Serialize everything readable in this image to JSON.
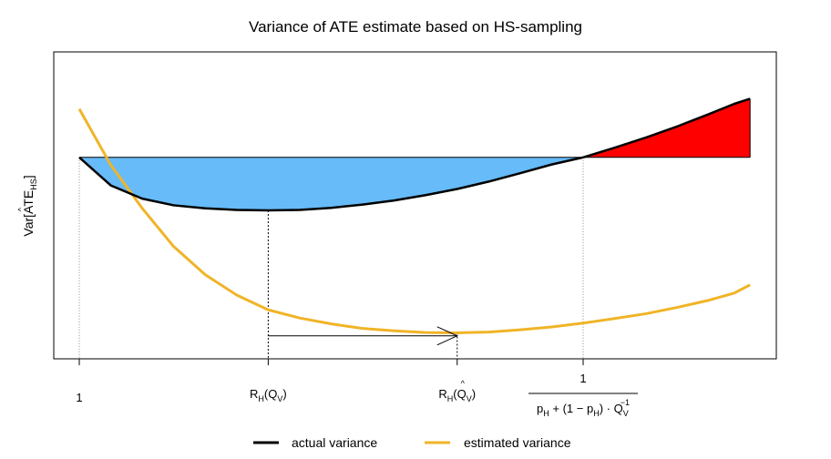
{
  "chart_data": {
    "type": "line",
    "title": "Variance of ATE estimate based on HS-sampling",
    "ylabel": {
      "main": "Var[ATE",
      "sub": "HS",
      "close": "]",
      "hat": "^"
    },
    "xlabel": "",
    "grid": false,
    "xlim": [
      -0.02,
      1.04
    ],
    "ylim": [
      0.0,
      1.0
    ],
    "x_ticks": [
      {
        "id": "one-left",
        "x": 0.0,
        "text": "1"
      },
      {
        "id": "r-h-qv",
        "x": 0.3,
        "main": "R",
        "sub": "H",
        "paren": "(Q",
        "sub2": "V",
        "close": ")"
      },
      {
        "id": "r-h-qv-hat",
        "x": 0.6,
        "main": "R",
        "sub": "H",
        "paren": "(Q",
        "sub2": "V",
        "close": ")",
        "hat": "^"
      },
      {
        "id": "fraction",
        "x": 0.8,
        "numerator": "1",
        "den_parts": [
          "p",
          "H",
          " + (1 − p",
          "H",
          ") · Q",
          "V",
          "−1"
        ]
      }
    ],
    "reference_level": 0.74,
    "crossing_x": 0.8,
    "vertical_markers": [
      0.0,
      0.3,
      0.6,
      0.8
    ],
    "arrow": {
      "from": 0.3,
      "to": 0.6,
      "y": 0.04
    },
    "series": [
      {
        "name": "actual variance",
        "color": "#000000",
        "x": [
          0.0,
          0.05,
          0.1,
          0.15,
          0.2,
          0.25,
          0.3,
          0.35,
          0.4,
          0.45,
          0.5,
          0.55,
          0.6,
          0.65,
          0.7,
          0.75,
          0.8,
          0.85,
          0.9,
          0.95,
          1.0,
          1.04,
          1.065
        ],
        "y": [
          0.74,
          0.63,
          0.578,
          0.552,
          0.54,
          0.534,
          0.532,
          0.534,
          0.542,
          0.555,
          0.571,
          0.592,
          0.616,
          0.645,
          0.678,
          0.712,
          0.74,
          0.778,
          0.818,
          0.862,
          0.91,
          0.95,
          0.97
        ]
      },
      {
        "name": "estimated variance",
        "color": "#F0B428",
        "x": [
          0.0,
          0.05,
          0.1,
          0.15,
          0.2,
          0.25,
          0.3,
          0.35,
          0.4,
          0.45,
          0.5,
          0.55,
          0.6,
          0.65,
          0.7,
          0.75,
          0.8,
          0.85,
          0.9,
          0.95,
          1.0,
          1.04,
          1.065
        ],
        "y": [
          0.93,
          0.71,
          0.54,
          0.39,
          0.28,
          0.2,
          0.142,
          0.11,
          0.087,
          0.069,
          0.06,
          0.053,
          0.052,
          0.055,
          0.064,
          0.075,
          0.09,
          0.108,
          0.127,
          0.152,
          0.18,
          0.208,
          0.24
        ]
      }
    ],
    "fills": {
      "below_reference": "#66BBF8",
      "above_reference": "#FF0000"
    },
    "legend": {
      "position": "bottom"
    }
  }
}
